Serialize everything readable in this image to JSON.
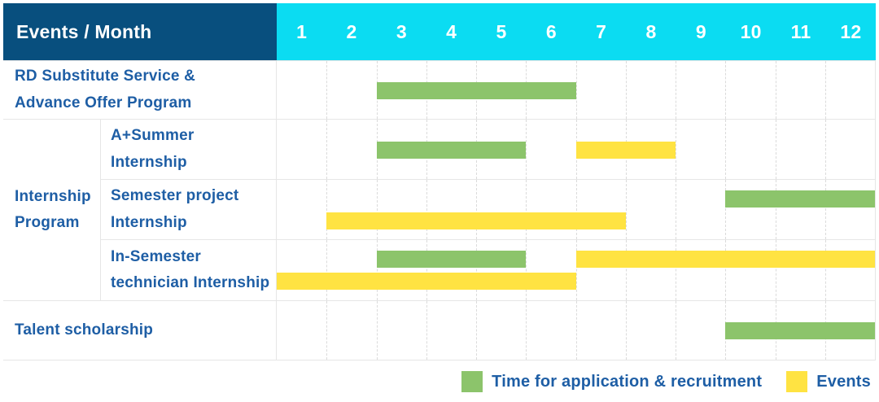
{
  "header": {
    "title": "Events / Month",
    "months": [
      "1",
      "2",
      "3",
      "4",
      "5",
      "6",
      "7",
      "8",
      "9",
      "10",
      "11",
      "12"
    ]
  },
  "colors": {
    "header_bg": "#084F7E",
    "month_header_bg": "#0BDCF2",
    "text_blue": "#1E5EA5",
    "green": "#8CC46B",
    "yellow": "#FFE342",
    "grid_line": "#E6E6E6"
  },
  "legend": {
    "application_label": "Time for application & recruitment",
    "events_label": "Events"
  },
  "chart_data": {
    "type": "gantt",
    "title": "Events / Month",
    "x_unit": "month",
    "x_ticks": [
      1,
      2,
      3,
      4,
      5,
      6,
      7,
      8,
      9,
      10,
      11,
      12
    ],
    "series_legend": [
      {
        "name": "Time for application & recruitment",
        "color": "green"
      },
      {
        "name": "Events",
        "color": "yellow"
      }
    ],
    "rows": [
      {
        "label": "RD Substitute Service &\nAdvance Offer Program",
        "bars": [
          {
            "series": "Time for application & recruitment",
            "color": "green",
            "start_month": 3,
            "end_month": 6,
            "lane": "middle"
          }
        ]
      },
      {
        "label": "Internship\nProgram",
        "subrows": [
          {
            "label": "A+Summer\nInternship",
            "bars": [
              {
                "series": "Time for application & recruitment",
                "color": "green",
                "start_month": 3,
                "end_month": 5,
                "lane": "middle"
              },
              {
                "series": "Events",
                "color": "yellow",
                "start_month": 7,
                "end_month": 8,
                "lane": "middle"
              }
            ]
          },
          {
            "label": "Semester project\nInternship",
            "bars": [
              {
                "series": "Time for application & recruitment",
                "color": "green",
                "start_month": 10,
                "end_month": 12,
                "lane": "top"
              },
              {
                "series": "Events",
                "color": "yellow",
                "start_month": 2,
                "end_month": 7,
                "lane": "bottom"
              }
            ]
          },
          {
            "label": "In-Semester\ntechnician Internship",
            "bars": [
              {
                "series": "Time for application & recruitment",
                "color": "green",
                "start_month": 3,
                "end_month": 5,
                "lane": "top"
              },
              {
                "series": "Events",
                "color": "yellow",
                "start_month": 7,
                "end_month": 12,
                "lane": "top"
              },
              {
                "series": "Events",
                "color": "yellow",
                "start_month": 1,
                "end_month": 6,
                "lane": "bottom"
              }
            ]
          }
        ]
      },
      {
        "label": "Talent scholarship",
        "bars": [
          {
            "series": "Time for application & recruitment",
            "color": "green",
            "start_month": 10,
            "end_month": 12,
            "lane": "middle"
          }
        ]
      }
    ]
  }
}
